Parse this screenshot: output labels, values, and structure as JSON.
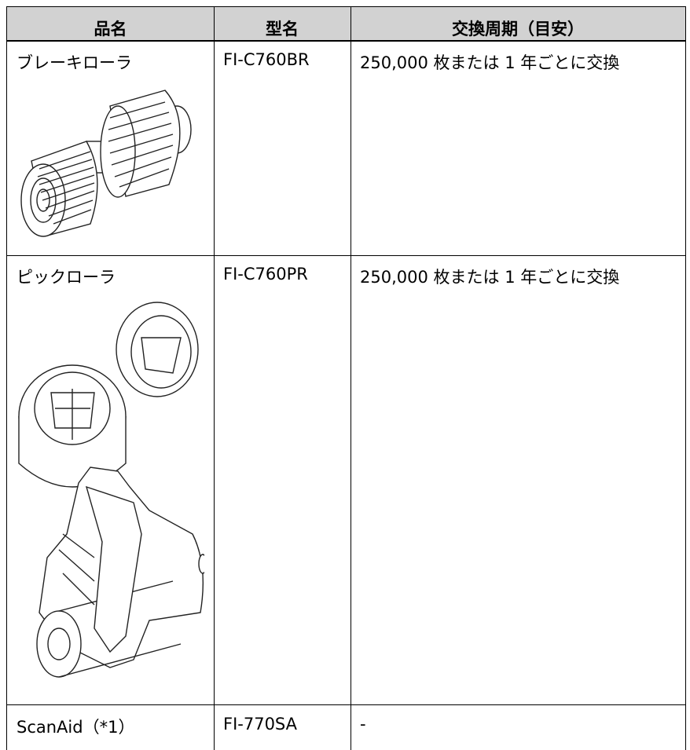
{
  "table": {
    "header": [
      "品名",
      "型名",
      "交換周期（目安）"
    ],
    "rows": [
      [
        "ブレーキローラ",
        "FI-C760BR",
        "250,000 枚または 1 年ごとに交換"
      ],
      [
        "ピックローラ",
        "FI-C760PR",
        "250,000 枚または 1 年ごとに交換"
      ],
      [
        "ScanAid（*1）",
        "FI-770SA",
        "-"
      ]
    ]
  }
}
